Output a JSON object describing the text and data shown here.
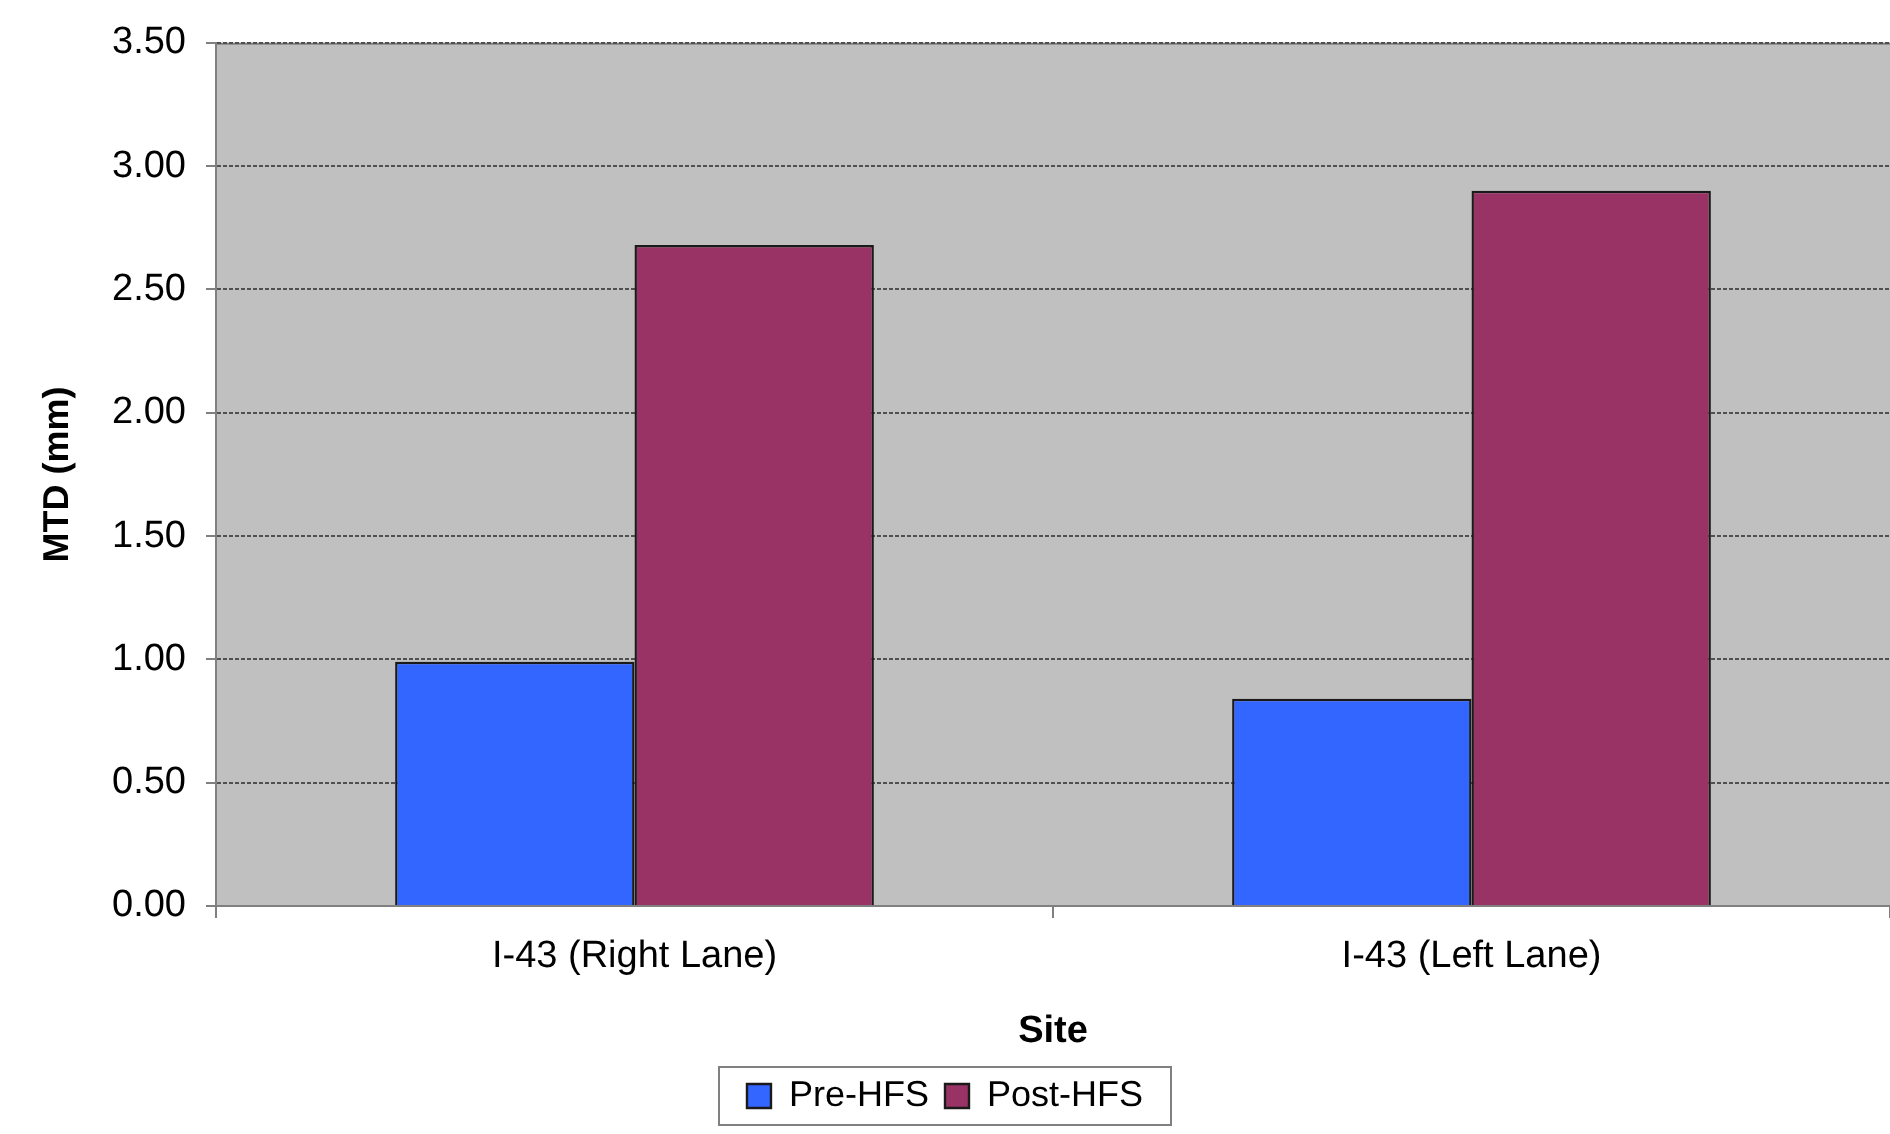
{
  "chart_data": {
    "type": "bar",
    "xlabel": "Site",
    "ylabel": "MTD (mm)",
    "categories": [
      "I-43 (Right Lane)",
      "I-43 (Left Lane)"
    ],
    "series": [
      {
        "name": "Pre-HFS",
        "color": "#3366ff",
        "values": [
          0.99,
          0.84
        ]
      },
      {
        "name": "Post-HFS",
        "color": "#993366",
        "values": [
          2.68,
          2.9
        ]
      }
    ],
    "ylim": [
      0,
      3.5
    ],
    "yticks": [
      {
        "value": 0,
        "label": "0.00"
      },
      {
        "value": 0.5,
        "label": "0.50"
      },
      {
        "value": 1,
        "label": "1.00"
      },
      {
        "value": 1.5,
        "label": "1.50"
      },
      {
        "value": 2,
        "label": "2.00"
      },
      {
        "value": 2.5,
        "label": "2.50"
      },
      {
        "value": 3,
        "label": "3.00"
      },
      {
        "value": 3.5,
        "label": "3.50"
      }
    ],
    "grid": "y",
    "legend": "bottom"
  }
}
